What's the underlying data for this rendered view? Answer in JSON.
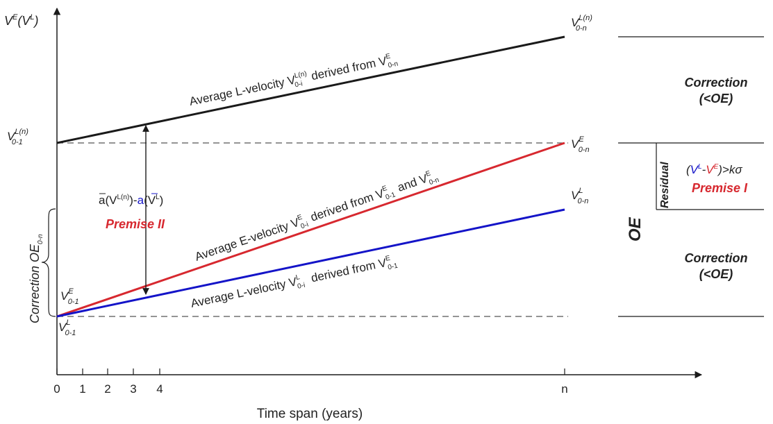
{
  "axes": {
    "y_label": {
      "base": "V",
      "sup1": "E",
      "paren_open": "(V",
      "sup2": "L",
      "paren_close": ")"
    },
    "x_title": "Time span (years)",
    "x_ticks": [
      "0",
      "1",
      "2",
      "3",
      "4",
      "n"
    ]
  },
  "lines": {
    "black": {
      "text_prefix": "Average L-velocity ",
      "sym": "V",
      "sup": "L(n)",
      "sub": "0-i",
      "text_mid": " derived from ",
      "sym2": "V",
      "sup2": "E",
      "sub2": "0-n",
      "color": "#1a1a1a"
    },
    "red": {
      "text_prefix": "Average E-velocity ",
      "sym": "V",
      "sup": "E",
      "sub": "0-i",
      "text_mid": " derived from ",
      "sym2": "V",
      "sup2": "E",
      "sub2": "0-1",
      "text_and": " and ",
      "sym3": "V",
      "sup3": "E",
      "sub3": "0-n",
      "color": "#d7282f"
    },
    "blue": {
      "text_prefix": "Average L-velocity ",
      "sym": "V",
      "sup": "L",
      "sub": "0-i",
      "text_mid": " derived from ",
      "sym2": "V",
      "sup2": "E",
      "sub2": "0-1",
      "color": "#1414c8"
    }
  },
  "point_labels": {
    "v0n_ln": {
      "base": "V",
      "sup": "L(n)",
      "sub": "0-n"
    },
    "v01_ln": {
      "base": "V",
      "sup": "L(n)",
      "sub": "0-1"
    },
    "v0n_e": {
      "base": "V",
      "sup": "E",
      "sub": "0-n"
    },
    "v0n_l": {
      "base": "V",
      "sup": "L",
      "sub": "0-n"
    },
    "v01_e": {
      "base": "V",
      "sup": "E",
      "sub": "0-1"
    },
    "v01_l": {
      "base": "V",
      "sup": "L",
      "sub": "0-1"
    }
  },
  "annotations": {
    "diff_formula": {
      "part1": "a",
      "sup1": "L(n)",
      "mid": ")-",
      "part2": "a",
      "open": "(V",
      "close": "(V",
      "sup2": "L",
      "end": ")"
    },
    "premise2": "Premise II",
    "correction_oe": {
      "text": "Correction OE",
      "sub": "0-n"
    },
    "correction_top": [
      "Correction",
      "(<OE)"
    ],
    "correction_bottom": [
      "Correction",
      "(<OE)"
    ],
    "residual": "Residual",
    "residual_formula": {
      "open": "(",
      "v1": "V",
      "s1": "L",
      "dash": "-",
      "v2": "V",
      "s2": "E",
      "tail": ")>kσ"
    },
    "premise1": "Premise I",
    "oe": "OE"
  }
}
